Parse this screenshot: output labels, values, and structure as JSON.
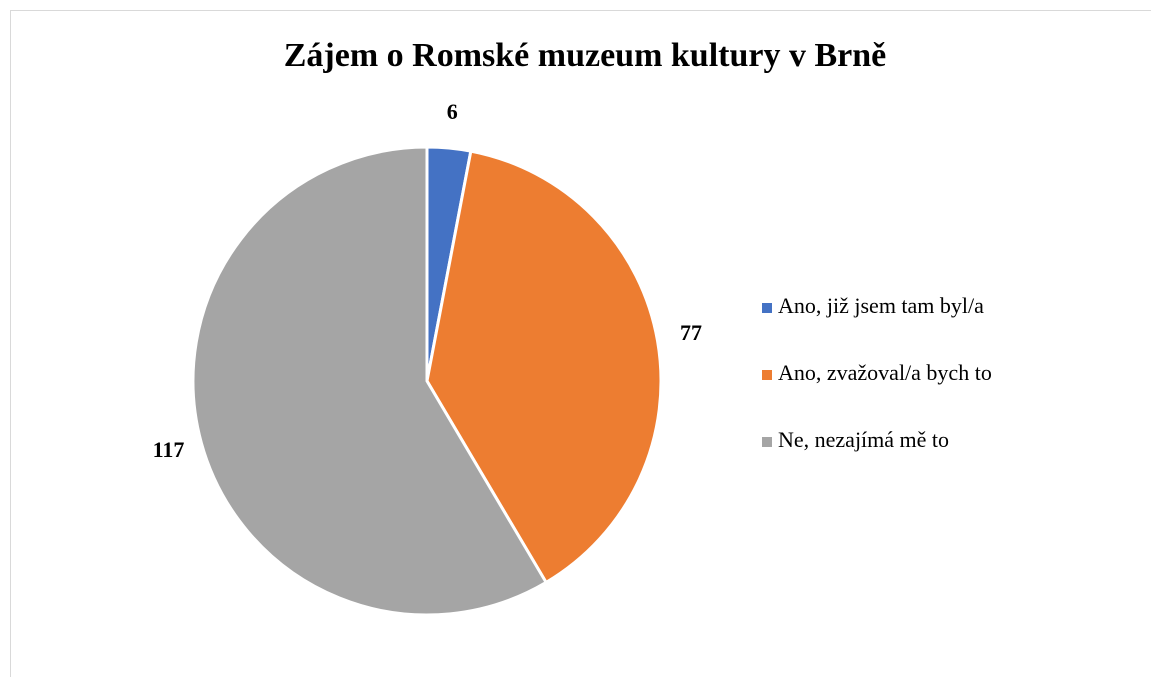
{
  "chart_data": {
    "type": "pie",
    "title": "Zájem o Romské muzeum kultury v Brně",
    "categories": [
      "Ano, již jsem tam byl/a",
      "Ano, zvažoval/a bych to",
      "Ne, nezajímá mě to"
    ],
    "values": [
      6,
      77,
      117
    ],
    "colors": [
      "#4472c4",
      "#ed7d31",
      "#a5a5a5"
    ],
    "legend": "right"
  }
}
